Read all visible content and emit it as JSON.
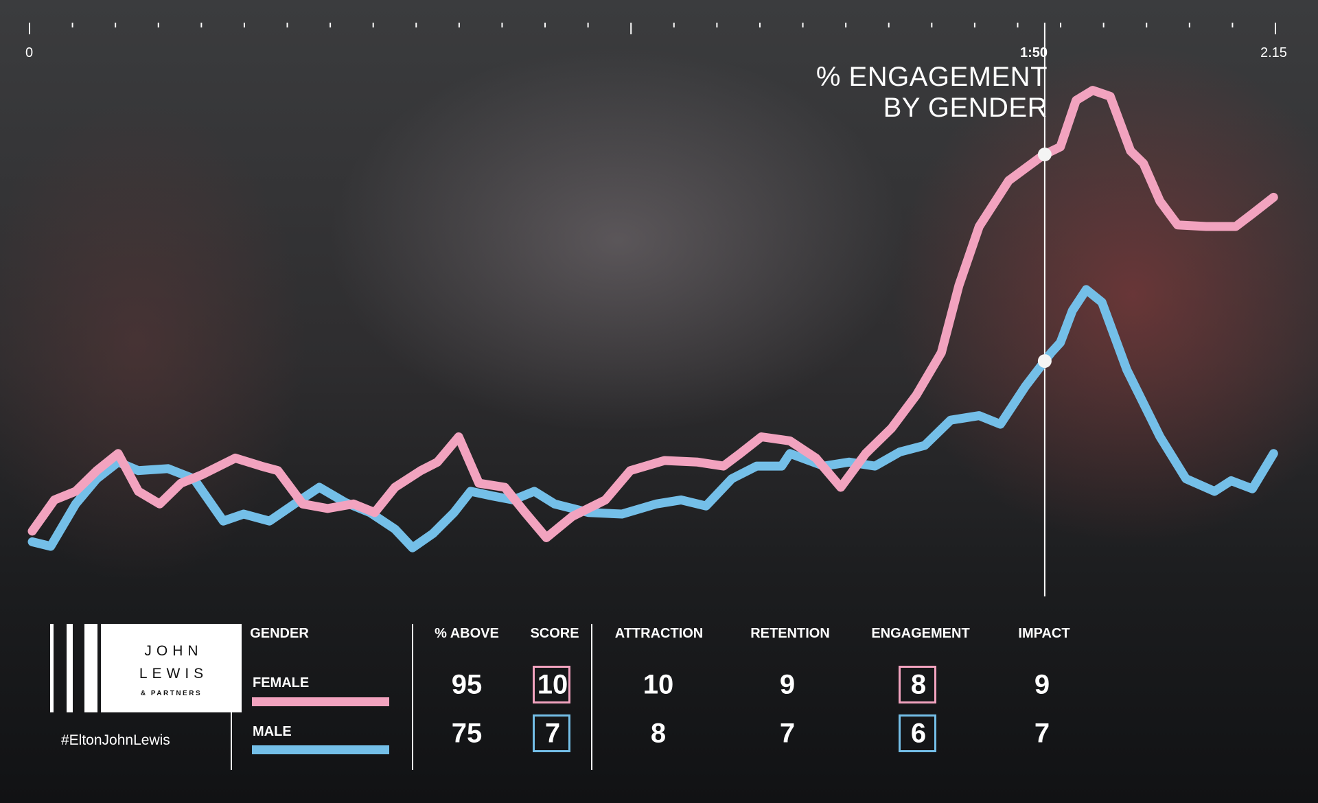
{
  "chart_data": {
    "type": "line",
    "title": "% ENGAGEMENT BY GENDER",
    "title_lines": [
      "% ENGAGEMENT",
      "BY GENDER"
    ],
    "x_tick_labels": {
      "start": "0",
      "end": "2.15"
    },
    "cursor_label": "1:50",
    "cursor_x": 110,
    "xlim": [
      0,
      135
    ],
    "ylim": [
      0,
      100
    ],
    "grid": false,
    "series": [
      {
        "name": "FEMALE",
        "color": "#f2a3bf",
        "points": [
          [
            0.3,
            11.3
          ],
          [
            2.7,
            17.5
          ],
          [
            5.0,
            19.2
          ],
          [
            7.3,
            23.3
          ],
          [
            9.6,
            26.7
          ],
          [
            11.8,
            19.2
          ],
          [
            14.1,
            16.7
          ],
          [
            16.4,
            20.8
          ],
          [
            18.7,
            22.5
          ],
          [
            22.3,
            25.8
          ],
          [
            25.1,
            24.2
          ],
          [
            26.9,
            23.3
          ],
          [
            29.6,
            16.7
          ],
          [
            32.3,
            15.8
          ],
          [
            35.1,
            16.7
          ],
          [
            37.4,
            15
          ],
          [
            39.6,
            20
          ],
          [
            42.4,
            23.3
          ],
          [
            44.2,
            25
          ],
          [
            46.5,
            30
          ],
          [
            48.7,
            20.8
          ],
          [
            51.5,
            20
          ],
          [
            53.7,
            15
          ],
          [
            56.0,
            10
          ],
          [
            58.8,
            14.2
          ],
          [
            62.4,
            17.5
          ],
          [
            65.1,
            23.3
          ],
          [
            68.8,
            25.3
          ],
          [
            72.4,
            25
          ],
          [
            75.2,
            24.2
          ],
          [
            77.0,
            26.7
          ],
          [
            79.3,
            30
          ],
          [
            82.4,
            29.2
          ],
          [
            85.2,
            25.8
          ],
          [
            87.9,
            20
          ],
          [
            90.6,
            26.7
          ],
          [
            93.4,
            31.7
          ],
          [
            96.1,
            38.3
          ],
          [
            98.8,
            46.7
          ],
          [
            100.7,
            60
          ],
          [
            102.9,
            71.7
          ],
          [
            106.1,
            80.8
          ],
          [
            109.8,
            85.8
          ],
          [
            111.7,
            87.5
          ],
          [
            113.4,
            96.7
          ],
          [
            115.2,
            98.7
          ],
          [
            117.1,
            97.5
          ],
          [
            119.3,
            86.7
          ],
          [
            120.7,
            84.2
          ],
          [
            122.5,
            76.7
          ],
          [
            124.4,
            72
          ],
          [
            127.5,
            71.7
          ],
          [
            130.7,
            71.7
          ],
          [
            132.5,
            74.2
          ],
          [
            134.8,
            77.5
          ]
        ]
      },
      {
        "name": "MALE",
        "color": "#74bfe8",
        "points": [
          [
            0.3,
            9.2
          ],
          [
            2.3,
            8.3
          ],
          [
            5.0,
            16.7
          ],
          [
            7.3,
            21.7
          ],
          [
            9.6,
            25
          ],
          [
            11.8,
            23.3
          ],
          [
            15.0,
            23.7
          ],
          [
            17.8,
            21.7
          ],
          [
            21.0,
            13.3
          ],
          [
            23.2,
            14.7
          ],
          [
            26.0,
            13.3
          ],
          [
            28.7,
            16.7
          ],
          [
            31.4,
            20
          ],
          [
            34.2,
            17
          ],
          [
            36.9,
            15
          ],
          [
            39.6,
            11.7
          ],
          [
            41.5,
            8
          ],
          [
            43.7,
            10.8
          ],
          [
            46.0,
            15
          ],
          [
            47.8,
            19.2
          ],
          [
            50.1,
            18.3
          ],
          [
            52.4,
            17.5
          ],
          [
            54.7,
            19.2
          ],
          [
            56.9,
            16.7
          ],
          [
            60.6,
            15
          ],
          [
            64.2,
            14.7
          ],
          [
            67.9,
            16.7
          ],
          [
            70.6,
            17.5
          ],
          [
            73.3,
            16.3
          ],
          [
            76.1,
            21.7
          ],
          [
            78.8,
            24.2
          ],
          [
            81.5,
            24.2
          ],
          [
            82.4,
            26.7
          ],
          [
            86.1,
            24.2
          ],
          [
            88.8,
            25
          ],
          [
            91.6,
            24.2
          ],
          [
            94.3,
            27
          ],
          [
            97.0,
            28.3
          ],
          [
            99.8,
            33.3
          ],
          [
            102.9,
            34.2
          ],
          [
            105.2,
            32.5
          ],
          [
            107.9,
            40
          ],
          [
            110.7,
            46.7
          ],
          [
            111.7,
            48.7
          ],
          [
            113.0,
            55
          ],
          [
            114.5,
            59.2
          ],
          [
            116.2,
            56.7
          ],
          [
            118.9,
            43.3
          ],
          [
            122.5,
            30
          ],
          [
            125.3,
            21.7
          ],
          [
            128.4,
            19.2
          ],
          [
            130.2,
            21.3
          ],
          [
            132.5,
            19.7
          ],
          [
            134.8,
            26.7
          ]
        ]
      }
    ]
  },
  "brand": {
    "logo_text": [
      "JOHN",
      "LEWIS",
      "& PARTNERS"
    ],
    "hashtag": "#EltonJohnLewis"
  },
  "table": {
    "gender_header": "GENDER",
    "headers": [
      "% ABOVE",
      "SCORE",
      "ATTRACTION",
      "RETENTION",
      "ENGAGEMENT",
      "IMPACT"
    ],
    "rows": [
      {
        "label": "FEMALE",
        "color": "#f2a3bf",
        "values": [
          "95",
          "10",
          "10",
          "9",
          "8",
          "9"
        ]
      },
      {
        "label": "MALE",
        "color": "#74bfe8",
        "values": [
          "75",
          "7",
          "8",
          "7",
          "6",
          "7"
        ]
      }
    ],
    "highlighted_columns": [
      "SCORE",
      "ENGAGEMENT"
    ]
  }
}
